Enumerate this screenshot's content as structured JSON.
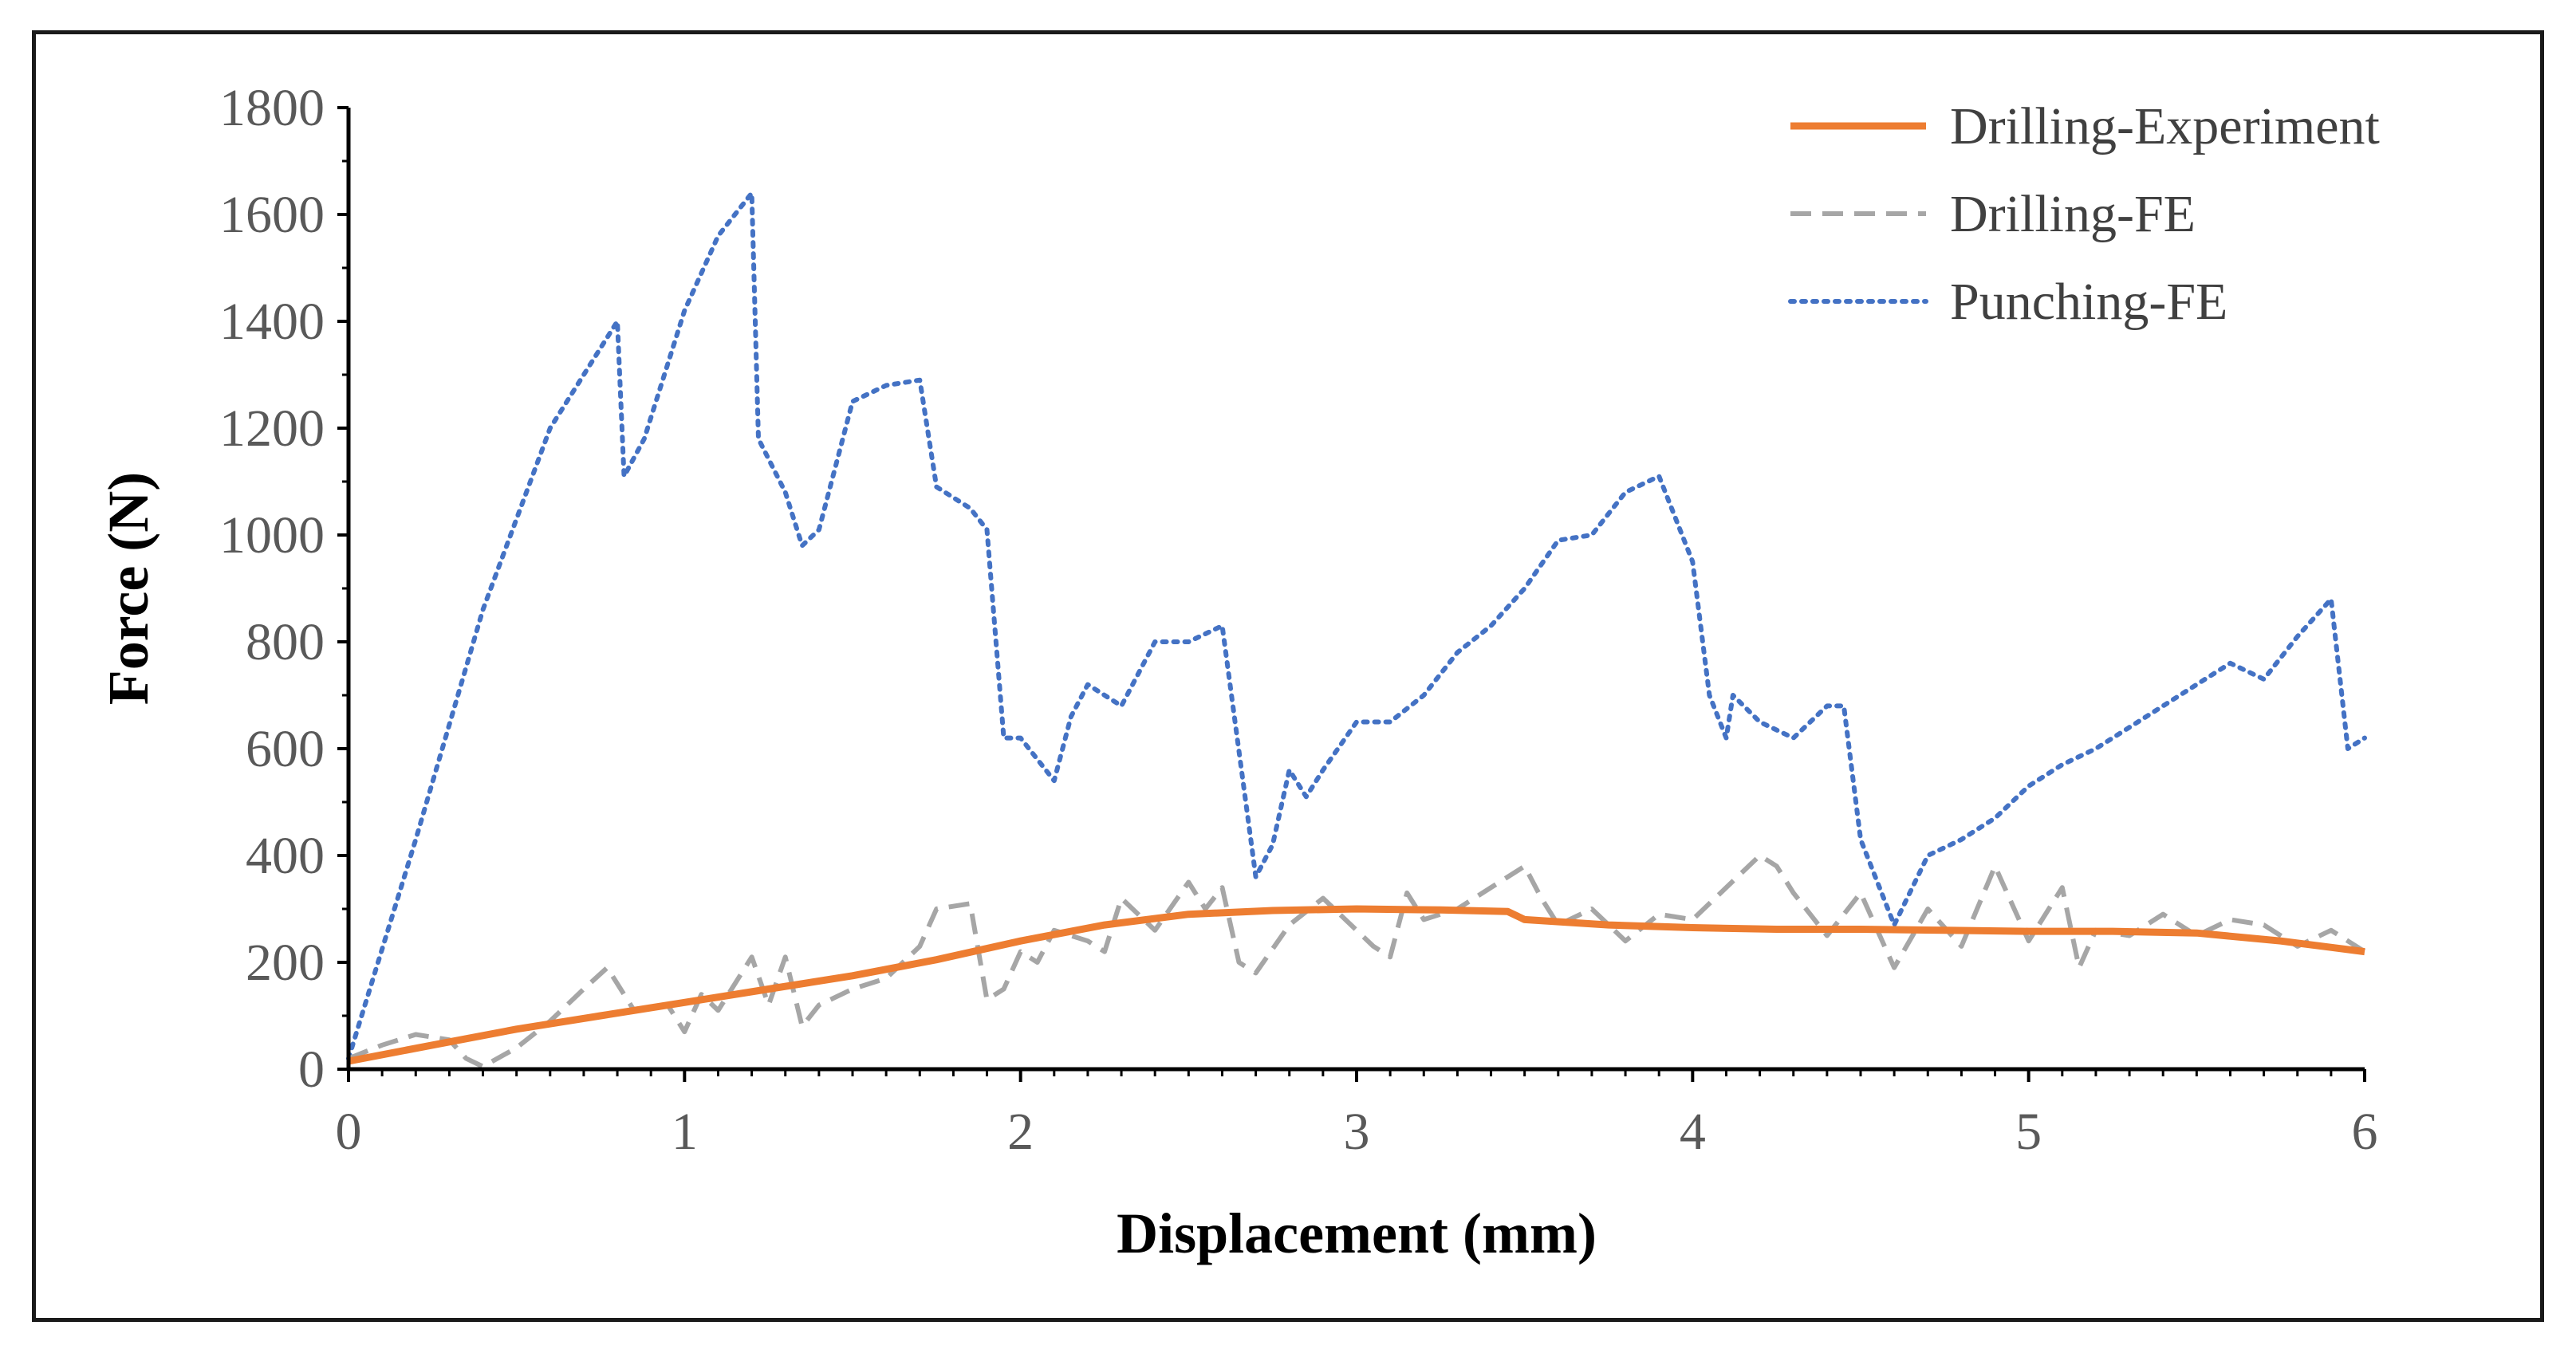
{
  "chart_data": {
    "type": "line",
    "title": "",
    "xlabel": "Displacement (mm)",
    "ylabel": "Force (N)",
    "xlim": [
      0,
      6
    ],
    "ylim": [
      0,
      1800
    ],
    "xticks": [
      0,
      1,
      2,
      3,
      4,
      5,
      6
    ],
    "yticks": [
      0,
      200,
      400,
      600,
      800,
      1000,
      1200,
      1400,
      1600,
      1800
    ],
    "grid": false,
    "legend_position": "top-right",
    "series": [
      {
        "name": "Drilling-Experiment",
        "color": "#ED7D31",
        "style": "solid",
        "x": [
          0,
          0.25,
          0.5,
          0.75,
          1.0,
          1.25,
          1.5,
          1.75,
          2.0,
          2.25,
          2.5,
          2.75,
          3.0,
          3.25,
          3.45,
          3.5,
          3.75,
          4.0,
          4.25,
          4.5,
          4.75,
          5.0,
          5.25,
          5.5,
          5.75,
          6.0
        ],
        "y": [
          15,
          45,
          75,
          100,
          125,
          150,
          175,
          205,
          240,
          270,
          290,
          297,
          300,
          298,
          295,
          280,
          270,
          265,
          262,
          262,
          260,
          258,
          258,
          255,
          240,
          220
        ]
      },
      {
        "name": "Drilling-FE",
        "color": "#A6A6A6",
        "style": "dashed",
        "x": [
          0,
          0.1,
          0.2,
          0.3,
          0.35,
          0.4,
          0.5,
          0.6,
          0.7,
          0.77,
          0.85,
          0.95,
          1.0,
          1.05,
          1.1,
          1.2,
          1.25,
          1.3,
          1.35,
          1.4,
          1.5,
          1.6,
          1.7,
          1.75,
          1.85,
          1.9,
          1.95,
          2.0,
          2.05,
          2.1,
          2.2,
          2.25,
          2.3,
          2.4,
          2.5,
          2.55,
          2.6,
          2.65,
          2.7,
          2.8,
          2.9,
          3.0,
          3.05,
          3.1,
          3.15,
          3.2,
          3.3,
          3.4,
          3.5,
          3.55,
          3.6,
          3.7,
          3.8,
          3.9,
          4.0,
          4.1,
          4.2,
          4.25,
          4.3,
          4.4,
          4.5,
          4.6,
          4.7,
          4.8,
          4.9,
          5.0,
          5.1,
          5.15,
          5.2,
          5.3,
          5.4,
          5.5,
          5.6,
          5.7,
          5.8,
          5.9,
          6.0
        ],
        "y": [
          20,
          45,
          65,
          55,
          20,
          5,
          40,
          90,
          150,
          190,
          110,
          120,
          70,
          140,
          110,
          210,
          120,
          210,
          80,
          120,
          150,
          170,
          230,
          300,
          310,
          130,
          150,
          220,
          200,
          260,
          240,
          220,
          320,
          260,
          350,
          300,
          340,
          200,
          180,
          270,
          320,
          260,
          230,
          210,
          330,
          280,
          300,
          340,
          380,
          320,
          270,
          300,
          240,
          290,
          280,
          340,
          400,
          380,
          330,
          250,
          330,
          190,
          300,
          230,
          380,
          240,
          340,
          190,
          260,
          250,
          290,
          250,
          280,
          270,
          230,
          260,
          220
        ]
      },
      {
        "name": "Punching-FE",
        "color": "#4472C4",
        "style": "dotted",
        "x": [
          0,
          0.2,
          0.4,
          0.6,
          0.8,
          0.82,
          0.88,
          1.0,
          1.1,
          1.2,
          1.22,
          1.3,
          1.35,
          1.4,
          1.5,
          1.6,
          1.7,
          1.75,
          1.85,
          1.9,
          1.95,
          2.0,
          2.1,
          2.15,
          2.2,
          2.3,
          2.4,
          2.5,
          2.6,
          2.7,
          2.75,
          2.8,
          2.85,
          2.9,
          3.0,
          3.1,
          3.2,
          3.3,
          3.4,
          3.5,
          3.6,
          3.7,
          3.8,
          3.9,
          4.0,
          4.05,
          4.1,
          4.12,
          4.2,
          4.3,
          4.4,
          4.45,
          4.5,
          4.6,
          4.7,
          4.8,
          4.9,
          5.0,
          5.1,
          5.2,
          5.3,
          5.4,
          5.5,
          5.6,
          5.7,
          5.8,
          5.9,
          5.95,
          6.0
        ],
        "y": [
          20,
          430,
          860,
          1200,
          1400,
          1110,
          1180,
          1420,
          1560,
          1640,
          1180,
          1080,
          980,
          1010,
          1250,
          1280,
          1290,
          1090,
          1050,
          1010,
          620,
          620,
          540,
          660,
          720,
          680,
          800,
          800,
          830,
          360,
          420,
          560,
          510,
          560,
          650,
          650,
          700,
          780,
          830,
          900,
          990,
          1000,
          1080,
          1110,
          950,
          700,
          620,
          700,
          650,
          620,
          680,
          680,
          430,
          270,
          400,
          430,
          470,
          530,
          570,
          600,
          640,
          680,
          720,
          760,
          730,
          810,
          880,
          600,
          620
        ]
      }
    ]
  }
}
